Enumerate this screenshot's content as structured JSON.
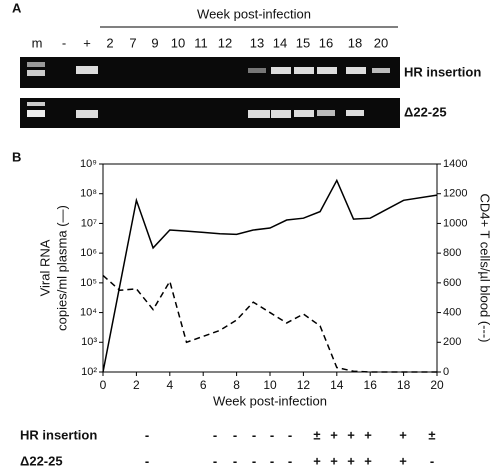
{
  "panel_a": {
    "label": "A",
    "heading": "Week post-infection",
    "lanes": [
      "m",
      "-",
      "+",
      "2",
      "7",
      "9",
      "10",
      "11",
      "12",
      "13",
      "14",
      "15",
      "16",
      "18",
      "20"
    ],
    "gels": [
      "HR insertion",
      "Δ22-25"
    ]
  },
  "chart_data": {
    "type": "line",
    "panel_label": "B",
    "xlabel": "Week post-infection",
    "ylabel": [
      "Viral RNA",
      "copies/ml plasma (—)"
    ],
    "y2label": "CD4+ T cells/µl blood (---)",
    "xlim": [
      0,
      20
    ],
    "xticks": [
      0,
      2,
      4,
      6,
      8,
      10,
      12,
      14,
      16,
      18,
      20
    ],
    "ylim": [
      100,
      1000000000
    ],
    "ylog": true,
    "yticks": [
      {
        "value": 100,
        "label": "10²"
      },
      {
        "value": 1000,
        "label": "10³"
      },
      {
        "value": 10000,
        "label": "10⁴"
      },
      {
        "value": 100000,
        "label": "10⁵"
      },
      {
        "value": 1000000,
        "label": "10⁶"
      },
      {
        "value": 10000000,
        "label": "10⁷"
      },
      {
        "value": 100000000,
        "label": "10⁸"
      },
      {
        "value": 1000000000,
        "label": "10⁹"
      }
    ],
    "y2lim": [
      0,
      1400
    ],
    "y2ticks": [
      0,
      200,
      400,
      600,
      800,
      1000,
      1200,
      1400
    ],
    "series": [
      {
        "color": "#000",
        "dash": "solid",
        "x": [
          0,
          2,
          3,
          4,
          5,
          6,
          7,
          8,
          9,
          10,
          11,
          12,
          13,
          14,
          15,
          16,
          18,
          20
        ],
        "values": [
          100,
          60000000,
          1500000,
          6000000,
          5500000,
          5000000,
          4500000,
          4300000,
          6000000,
          7000000,
          13000000,
          15000000,
          25000000,
          280000000,
          14000000,
          15000000,
          60000000,
          90000000
        ]
      },
      {
        "color": "#000",
        "dash": "dashed",
        "axis": "y2",
        "x": [
          0,
          1,
          2,
          3,
          4,
          5,
          6,
          7,
          8,
          9,
          10,
          11,
          12,
          13,
          14,
          15,
          16,
          18,
          20
        ],
        "values": [
          650,
          550,
          560,
          420,
          610,
          200,
          240,
          280,
          350,
          470,
          400,
          330,
          390,
          310,
          30,
          5,
          0,
          0,
          0
        ]
      }
    ]
  },
  "table": {
    "rows": [
      {
        "label": "HR insertion",
        "cells": [
          "-",
          "-",
          "-",
          "-",
          "-",
          "-",
          "±",
          "+",
          "+",
          "+",
          "+",
          "±"
        ]
      },
      {
        "label": "Δ22-25",
        "cells": [
          "-",
          "-",
          "-",
          "-",
          "-",
          "-",
          "+",
          "+",
          "+",
          "+",
          "+",
          "-"
        ]
      }
    ]
  }
}
